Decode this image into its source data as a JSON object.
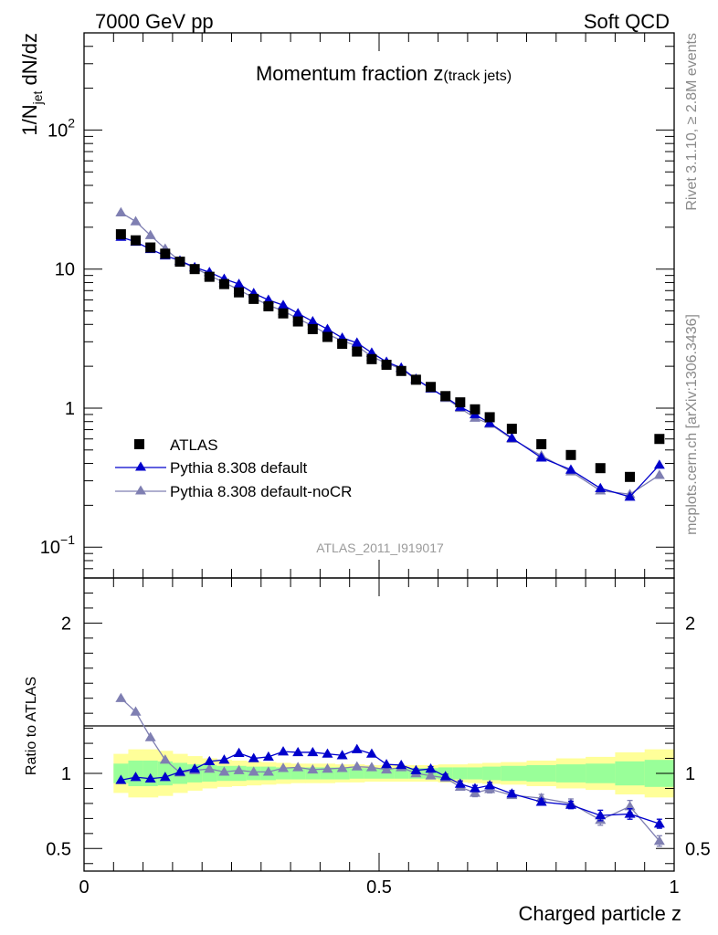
{
  "header": {
    "energy_label": "7000 GeV pp",
    "process_label": "Soft QCD"
  },
  "side": {
    "rivet_label": "Rivet 3.1.10, ≥ 2.8M events",
    "mcplots_label": "mcplots.cern.ch [arXiv:1306.3436]"
  },
  "chart_data": {
    "type": "scatter",
    "title": "Momentum fraction z",
    "title_suffix": "(track jets)",
    "analysis_label": "ATLAS_2011_I919017",
    "xlabel": "Charged particle z",
    "ylabel": "1/N_jet dN/dz",
    "ylabel_parts": {
      "pre": "1/N",
      "sub": "jet",
      "post": " dN/dz"
    },
    "ratio_ylabel": "Ratio to ATLAS",
    "xlim": [
      0,
      1
    ],
    "ylim": [
      0.06,
      500
    ],
    "ylog": true,
    "ratio_ylim": [
      0.35,
      2.3
    ],
    "x_ticks": [
      {
        "value": 0,
        "label": "0"
      },
      {
        "value": 0.5,
        "label": "0.5"
      },
      {
        "value": 1,
        "label": "1"
      }
    ],
    "y_ticks": [
      {
        "value": 0.1,
        "base": "10",
        "exp": "−1"
      },
      {
        "value": 1,
        "base": "1",
        "exp": ""
      },
      {
        "value": 10,
        "base": "10",
        "exp": ""
      },
      {
        "value": 100,
        "base": "10",
        "exp": "2"
      }
    ],
    "ratio_ticks": [
      {
        "value": 0.5,
        "label": "0.5"
      },
      {
        "value": 1,
        "label": "1"
      },
      {
        "value": 2,
        "label": "2"
      }
    ],
    "legend_position": "bottom-left",
    "x": [
      0.0625,
      0.0875,
      0.1125,
      0.1375,
      0.1625,
      0.1875,
      0.2125,
      0.2375,
      0.2625,
      0.2875,
      0.3125,
      0.3375,
      0.3625,
      0.3875,
      0.4125,
      0.4375,
      0.4625,
      0.4875,
      0.5125,
      0.5375,
      0.5625,
      0.5875,
      0.6125,
      0.6375,
      0.6625,
      0.6875,
      0.725,
      0.775,
      0.825,
      0.875,
      0.925,
      0.975
    ],
    "series": [
      {
        "name": "ATLAS",
        "color": "#000000",
        "marker": "square",
        "values": [
          17.8,
          16.1,
          14.3,
          12.9,
          11.3,
          10.0,
          8.8,
          7.8,
          6.8,
          6.1,
          5.4,
          4.8,
          4.2,
          3.7,
          3.25,
          2.9,
          2.55,
          2.25,
          2.05,
          1.85,
          1.6,
          1.42,
          1.22,
          1.1,
          0.98,
          0.86,
          0.71,
          0.55,
          0.46,
          0.37,
          0.32,
          0.6
        ],
        "band_inner": [
          0.065,
          0.085,
          0.085,
          0.08,
          0.07,
          0.06,
          0.055,
          0.05,
          0.05,
          0.045,
          0.045,
          0.04,
          0.04,
          0.04,
          0.04,
          0.04,
          0.035,
          0.035,
          0.035,
          0.035,
          0.035,
          0.035,
          0.04,
          0.04,
          0.04,
          0.045,
          0.05,
          0.055,
          0.06,
          0.065,
          0.08,
          0.09
        ],
        "band_outer": [
          0.13,
          0.16,
          0.16,
          0.15,
          0.13,
          0.115,
          0.1,
          0.09,
          0.085,
          0.08,
          0.075,
          0.07,
          0.065,
          0.065,
          0.065,
          0.06,
          0.06,
          0.055,
          0.055,
          0.055,
          0.055,
          0.055,
          0.06,
          0.06,
          0.065,
          0.07,
          0.075,
          0.085,
          0.1,
          0.11,
          0.14,
          0.16
        ]
      },
      {
        "name": "Pythia 8.308 default",
        "color": "#0000cc",
        "marker": "triangle",
        "values": [
          17.0,
          15.7,
          13.9,
          12.5,
          11.5,
          10.3,
          9.5,
          8.5,
          7.8,
          6.7,
          6.0,
          5.5,
          4.8,
          4.2,
          3.7,
          3.2,
          2.95,
          2.5,
          2.15,
          1.95,
          1.62,
          1.38,
          1.2,
          1.02,
          0.9,
          0.78,
          0.61,
          0.44,
          0.36,
          0.265,
          0.23,
          0.39
        ],
        "ratio": [
          0.955,
          0.975,
          0.965,
          0.975,
          1.01,
          1.03,
          1.08,
          1.09,
          1.135,
          1.1,
          1.11,
          1.145,
          1.14,
          1.14,
          1.13,
          1.12,
          1.16,
          1.13,
          1.06,
          1.055,
          1.02,
          1.03,
          0.98,
          0.93,
          0.9,
          0.92,
          0.865,
          0.81,
          0.79,
          0.72,
          0.73,
          0.665
        ],
        "ratio_err": [
          0,
          0,
          0,
          0,
          0,
          0,
          0,
          0,
          0,
          0,
          0,
          0,
          0,
          0,
          0,
          0,
          0,
          0,
          0,
          0,
          0.01,
          0.015,
          0.015,
          0.02,
          0.02,
          0.02,
          0.02,
          0.02,
          0.025,
          0.035,
          0.035,
          0.03
        ]
      },
      {
        "name": "Pythia 8.308 default-noCR",
        "color": "#7f7fb2",
        "marker": "triangle",
        "values": [
          25.5,
          22.0,
          17.5,
          14.0,
          11.4,
          10.2,
          9.0,
          8.0,
          7.1,
          6.2,
          5.5,
          5.0,
          4.4,
          3.9,
          3.4,
          3.05,
          2.8,
          2.35,
          2.1,
          1.92,
          1.6,
          1.4,
          1.18,
          1.0,
          0.85,
          0.77,
          0.6,
          0.455,
          0.35,
          0.255,
          0.24,
          0.33
        ],
        "ratio": [
          1.5,
          1.41,
          1.24,
          1.09,
          1.005,
          1.02,
          1.03,
          1.01,
          1.02,
          1.01,
          1.01,
          1.035,
          1.04,
          1.025,
          1.03,
          1.035,
          1.045,
          1.04,
          1.025,
          1.04,
          1.0,
          0.985,
          0.97,
          0.91,
          0.87,
          0.895,
          0.855,
          0.835,
          0.8,
          0.69,
          0.78,
          0.55
        ],
        "ratio_err": [
          0,
          0,
          0,
          0,
          0,
          0,
          0,
          0,
          0,
          0,
          0,
          0,
          0,
          0,
          0,
          0,
          0,
          0,
          0,
          0,
          0.01,
          0.015,
          0.015,
          0.02,
          0.025,
          0.025,
          0.02,
          0.025,
          0.03,
          0.035,
          0.04,
          0.035
        ]
      }
    ]
  }
}
